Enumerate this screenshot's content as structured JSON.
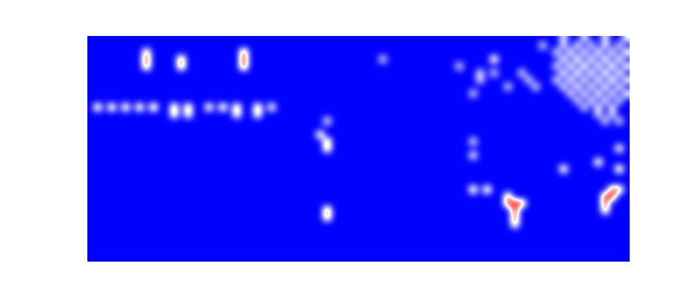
{
  "chart_data": {
    "type": "heatmap",
    "tick_labels": false,
    "color": "bwr",
    "color_range": [
      0,
      1
    ],
    "rows": 33,
    "columns": 78,
    "cells": [
      [
        2,
        8,
        0.8
      ],
      [
        3,
        8,
        0.95
      ],
      [
        4,
        8,
        0.9
      ],
      [
        3,
        13,
        0.9
      ],
      [
        4,
        13,
        0.9
      ],
      [
        2,
        22,
        0.95
      ],
      [
        3,
        22,
        1.0
      ],
      [
        4,
        22,
        1.0
      ],
      [
        10,
        1,
        0.8
      ],
      [
        10,
        3,
        0.8
      ],
      [
        10,
        5,
        0.8
      ],
      [
        10,
        7,
        0.8
      ],
      [
        10,
        9,
        0.85
      ],
      [
        10,
        12,
        0.8
      ],
      [
        10,
        14,
        0.8
      ],
      [
        10,
        17,
        0.75
      ],
      [
        10,
        19,
        0.8
      ],
      [
        10,
        21,
        0.8
      ],
      [
        10,
        24,
        0.8
      ],
      [
        10,
        26,
        0.7
      ],
      [
        11,
        12,
        0.8
      ],
      [
        11,
        14,
        0.75
      ],
      [
        11,
        21,
        0.75
      ],
      [
        11,
        24,
        0.75
      ],
      [
        3,
        42,
        0.55
      ],
      [
        12,
        34,
        0.6
      ],
      [
        14,
        33,
        0.75
      ],
      [
        15,
        34,
        0.8
      ],
      [
        16,
        34,
        0.8
      ],
      [
        25,
        34,
        0.9
      ],
      [
        26,
        34,
        0.85
      ],
      [
        3,
        58,
        0.75
      ],
      [
        4,
        53,
        0.55
      ],
      [
        5,
        56,
        0.55
      ],
      [
        5,
        58,
        0.55
      ],
      [
        5,
        62,
        0.55
      ],
      [
        6,
        56,
        0.55
      ],
      [
        7,
        60,
        0.55
      ],
      [
        8,
        55,
        0.55
      ],
      [
        6,
        63,
        0.55
      ],
      [
        7,
        64,
        0.55
      ],
      [
        1,
        65,
        0.55
      ],
      [
        0,
        68,
        0.55
      ],
      [
        0,
        71,
        0.55
      ],
      [
        0,
        74,
        0.55
      ],
      [
        0,
        77,
        0.55
      ],
      [
        1,
        68,
        0.55
      ],
      [
        1,
        70,
        0.6
      ],
      [
        1,
        72,
        0.55
      ],
      [
        1,
        74,
        0.6
      ],
      [
        1,
        76,
        0.55
      ],
      [
        2,
        67,
        0.6
      ],
      [
        2,
        69,
        0.65
      ],
      [
        2,
        71,
        0.6
      ],
      [
        2,
        73,
        0.65
      ],
      [
        2,
        75,
        0.6
      ],
      [
        2,
        77,
        0.65
      ],
      [
        3,
        68,
        0.65
      ],
      [
        3,
        70,
        0.7
      ],
      [
        3,
        72,
        0.65
      ],
      [
        3,
        74,
        0.7
      ],
      [
        3,
        76,
        0.65
      ],
      [
        4,
        67,
        0.6
      ],
      [
        4,
        69,
        0.65
      ],
      [
        4,
        71,
        0.7
      ],
      [
        4,
        73,
        0.65
      ],
      [
        4,
        75,
        0.7
      ],
      [
        4,
        77,
        0.6
      ],
      [
        5,
        68,
        0.65
      ],
      [
        5,
        70,
        0.7
      ],
      [
        5,
        72,
        0.65
      ],
      [
        5,
        74,
        0.7
      ],
      [
        5,
        76,
        0.65
      ],
      [
        6,
        67,
        0.6
      ],
      [
        6,
        69,
        0.65
      ],
      [
        6,
        71,
        0.6
      ],
      [
        6,
        73,
        0.65
      ],
      [
        6,
        75,
        0.7
      ],
      [
        6,
        77,
        0.6
      ],
      [
        7,
        68,
        0.6
      ],
      [
        7,
        70,
        0.65
      ],
      [
        7,
        72,
        0.6
      ],
      [
        7,
        74,
        0.65
      ],
      [
        7,
        76,
        0.6
      ],
      [
        8,
        69,
        0.6
      ],
      [
        8,
        71,
        0.6
      ],
      [
        8,
        73,
        0.65
      ],
      [
        8,
        75,
        0.6
      ],
      [
        8,
        77,
        0.6
      ],
      [
        9,
        70,
        0.55
      ],
      [
        9,
        72,
        0.6
      ],
      [
        9,
        74,
        0.6
      ],
      [
        9,
        76,
        0.55
      ],
      [
        10,
        71,
        0.55
      ],
      [
        10,
        73,
        0.6
      ],
      [
        10,
        75,
        0.55
      ],
      [
        11,
        73,
        0.55
      ],
      [
        11,
        75,
        0.55
      ],
      [
        12,
        74,
        0.55
      ],
      [
        12,
        76,
        0.55
      ],
      [
        15,
        55,
        0.6
      ],
      [
        17,
        55,
        0.65
      ],
      [
        22,
        55,
        0.8
      ],
      [
        22,
        57,
        0.8
      ],
      [
        23,
        60,
        0.85
      ],
      [
        24,
        60,
        0.95
      ],
      [
        24,
        61,
        1.0
      ],
      [
        25,
        61,
        1.0
      ],
      [
        24,
        62,
        0.9
      ],
      [
        26,
        61,
        0.9
      ],
      [
        27,
        61,
        0.8
      ],
      [
        19,
        68,
        0.75
      ],
      [
        18,
        73,
        0.75
      ],
      [
        16,
        76,
        0.7
      ],
      [
        19,
        76,
        0.8
      ],
      [
        22,
        75,
        0.9
      ],
      [
        23,
        74,
        1.0
      ],
      [
        23,
        75,
        0.95
      ],
      [
        24,
        74,
        0.95
      ],
      [
        22,
        76,
        0.85
      ],
      [
        25,
        74,
        0.8
      ]
    ]
  }
}
